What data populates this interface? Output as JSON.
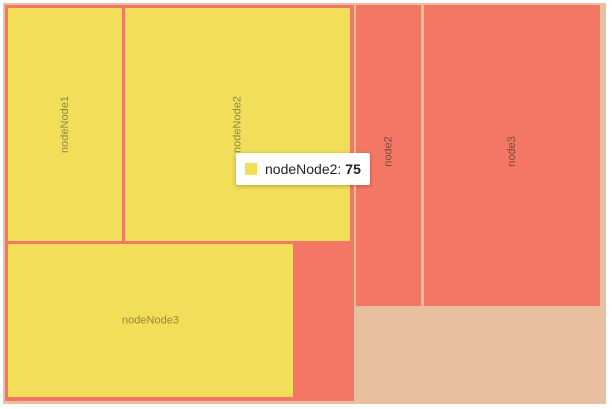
{
  "chart_data": {
    "type": "treemap",
    "nodes": [
      {
        "name": "",
        "children": [
          {
            "name": "nodeNode1",
            "value": 25
          },
          {
            "name": "nodeNode2",
            "value": 75
          },
          {
            "name": "nodeNode3",
            "value": 60
          }
        ]
      },
      {
        "name": "node2",
        "value": 30
      },
      {
        "name": "node3",
        "value": 80
      }
    ],
    "colors": {
      "background": "#e8c09f",
      "group": "#f47766",
      "leaf": "#f2de58",
      "leaf_label": "#8c8a4f",
      "node_label": "#7a4a3e"
    }
  },
  "tooltip": {
    "label": "nodeNode2:",
    "value": "75",
    "color": "#f2de58"
  }
}
